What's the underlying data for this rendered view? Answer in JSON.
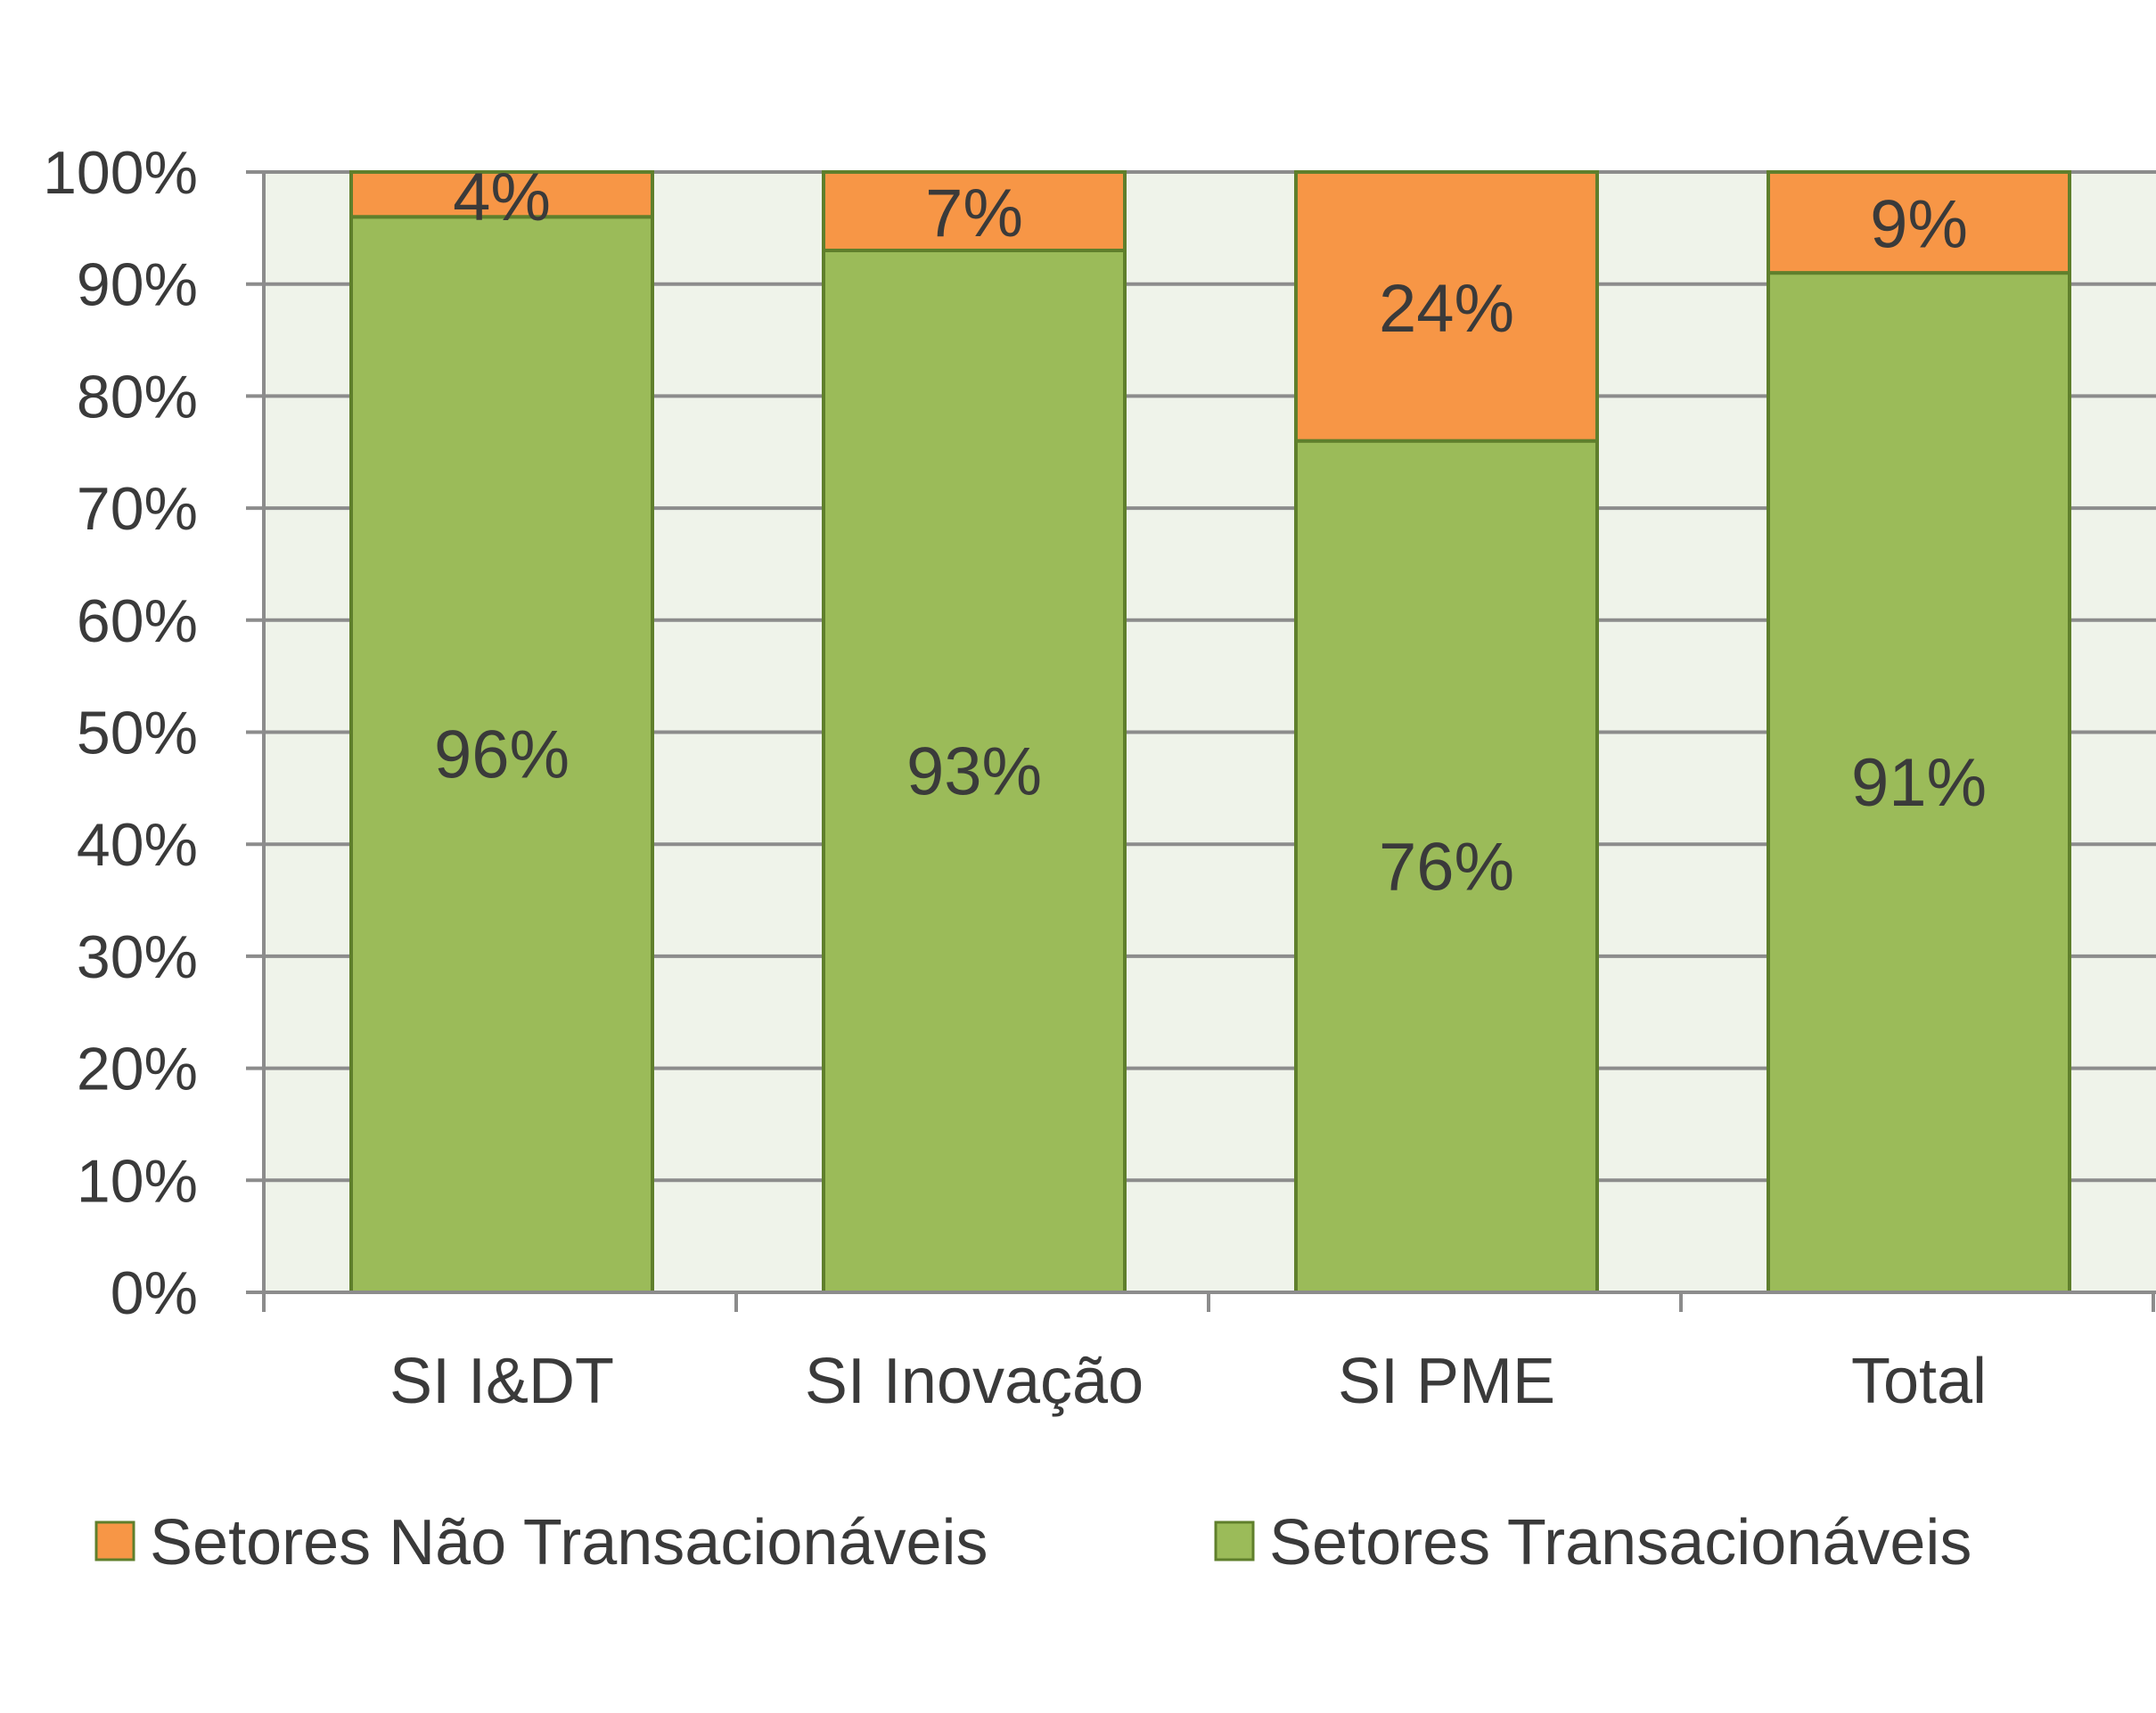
{
  "chart_data": {
    "type": "bar",
    "stacked": true,
    "categories": [
      "SI I&DT",
      "SI Inovação",
      "SI PME",
      "Total"
    ],
    "series": [
      {
        "name": "Setores Transacionáveis",
        "values": [
          96,
          93,
          76,
          91
        ],
        "labels": [
          "96%",
          "93%",
          "76%",
          "91%"
        ],
        "color": "#9bbb59",
        "border": "#5f7f2c"
      },
      {
        "name": "Setores Não Transacionáveis",
        "values": [
          4,
          7,
          24,
          9
        ],
        "labels": [
          "4%",
          "7%",
          "24%",
          "9%"
        ],
        "color": "#f79646",
        "border": "#5f7f2c"
      }
    ],
    "ylim": [
      0,
      100
    ],
    "yticks": [
      0,
      10,
      20,
      30,
      40,
      50,
      60,
      70,
      80,
      90,
      100
    ],
    "ytick_labels": [
      "0%",
      "10%",
      "20%",
      "30%",
      "40%",
      "50%",
      "60%",
      "70%",
      "80%",
      "90%",
      "100%"
    ],
    "grid": true,
    "plot_background": "#eff3ea",
    "gridline_color": "#8c8c8c",
    "legend": {
      "position": "bottom",
      "order": [
        "Setores Não Transacionáveis",
        "Setores Transacionáveis"
      ]
    },
    "title": "",
    "xlabel": "",
    "ylabel": ""
  }
}
